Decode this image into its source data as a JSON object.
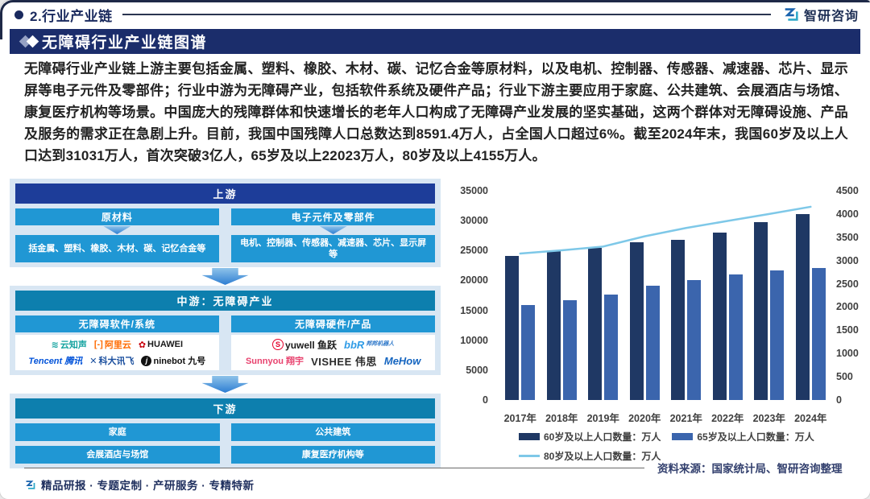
{
  "header": {
    "section_label": "2.行业产业链",
    "brand": "智研咨询"
  },
  "title": "无障碍行业产业链图谱",
  "intro_text": "无障碍行业产业链上游主要包括金属、塑料、橡胶、木材、碳、记忆合金等原材料，以及电机、控制器、传感器、减速器、芯片、显示屏等电子元件及零部件；行业中游为无障碍产业，包括软件系统及硬件产品；行业下游主要应用于家庭、公共建筑、会展酒店与场馆、康复医疗机构等场景。中国庞大的残障群体和快速增长的老年人口构成了无障碍产业发展的坚实基础，这两个群体对无障碍设施、产品及服务的需求正在急剧上升。目前，我国中国残障人口总数达到8591.4万人，占全国人口超过6%。截至2024年末，我国60岁及以上人口达到31031万人，首次突破3亿人，65岁及以上22023万人，80岁及以上4155万人。",
  "diagram": {
    "upstream": {
      "header": "上游",
      "columns": [
        {
          "title": "原材料",
          "detail": "括金属、塑料、橡胶、木材、碳、记忆合金等"
        },
        {
          "title": "电子元件及零部件",
          "detail": "电机、控制器、传感器、减速器、芯片、显示屏等"
        }
      ]
    },
    "midstream": {
      "header": "中游：无障碍产业",
      "software": {
        "title": "无障碍软件/系统",
        "logos": {
          "unisound": "云知声",
          "alicloud": "阿里云",
          "huawei": "HUAWEI",
          "tencent": "Tencent 腾讯",
          "iflytek": "科大讯飞",
          "ninebot": "ninebot 九号"
        }
      },
      "hardware": {
        "title": "无障碍硬件/产品",
        "logos": {
          "yuwell": "yuwell 鱼跃",
          "bangbang": "bbR",
          "bangbang_sub": "邦邦机器人",
          "sunnyou": "Sunnyou 翔宇",
          "vishee": "VISHEE 伟思",
          "mehow": "MeHow"
        }
      }
    },
    "downstream": {
      "header": "下游",
      "boxes": [
        "家庭",
        "公共建筑",
        "会展酒店与场馆",
        "康复医疗机构等"
      ]
    }
  },
  "chart_data": {
    "type": "bar",
    "subtype": "bar+line dual axis",
    "categories": [
      "2017年",
      "2018年",
      "2019年",
      "2020年",
      "2021年",
      "2022年",
      "2023年",
      "2024年"
    ],
    "series": [
      {
        "name": "60岁及以上人口数量：万人",
        "type": "bar",
        "axis": "left",
        "color": "#1f3864",
        "values": [
          24090,
          24949,
          25388,
          26402,
          26736,
          28004,
          29697,
          31031
        ]
      },
      {
        "name": "65岁及以上人口数量：万人",
        "type": "bar",
        "axis": "left",
        "color": "#3b65ad",
        "values": [
          15831,
          16658,
          17603,
          19064,
          20056,
          20978,
          21676,
          22023
        ]
      },
      {
        "name": "80岁及以上人口数量：万人",
        "type": "line",
        "axis": "right",
        "color": "#7ec8e8",
        "values": [
          3150,
          3220,
          3300,
          3520,
          3700,
          3850,
          4000,
          4155
        ]
      }
    ],
    "left_axis": {
      "min": 0,
      "max": 35000,
      "ticks": [
        35000,
        30000,
        25000,
        20000,
        15000,
        10000,
        5000,
        0
      ]
    },
    "right_axis": {
      "min": 0,
      "max": 4500,
      "ticks": [
        4500,
        4000,
        3500,
        3000,
        2500,
        2000,
        1500,
        1000,
        500,
        0
      ]
    },
    "grid": false,
    "legend_position": "bottom"
  },
  "source_note": "资料来源：国家统计局、智研咨询整理",
  "footer_tagline": "精品研报 · 专题定制 · 产研服务 · 专精特新"
}
